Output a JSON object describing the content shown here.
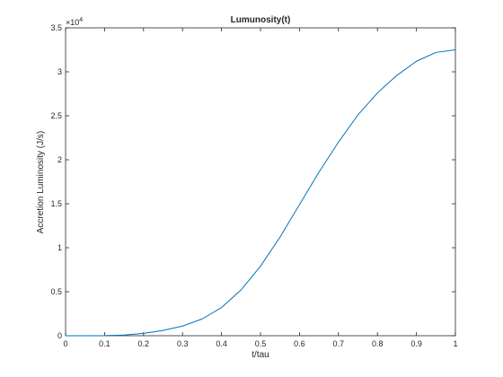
{
  "chart_data": {
    "type": "line",
    "title": "Lumunosity(t)",
    "xlabel": "t/tau",
    "ylabel": "Accretion Luminosity (J/s)",
    "xlim": [
      0,
      1
    ],
    "ylim": [
      0,
      3.5
    ],
    "y_multiplier_label": "×10",
    "y_multiplier_exponent": "4",
    "x_ticks": [
      0,
      0.1,
      0.2,
      0.3,
      0.4,
      0.5,
      0.6,
      0.7,
      0.8,
      0.9,
      1
    ],
    "x_tick_labels": [
      "0",
      "0.1",
      "0.2",
      "0.3",
      "0.4",
      "0.5",
      "0.6",
      "0.7",
      "0.8",
      "0.9",
      "1"
    ],
    "y_ticks": [
      0,
      0.5,
      1,
      1.5,
      2,
      2.5,
      3,
      3.5
    ],
    "y_tick_labels": [
      "0",
      "0.5",
      "1",
      "1.5",
      "2",
      "2.5",
      "3",
      "3.5"
    ],
    "grid": false,
    "series": [
      {
        "color": "#0072bd",
        "x": [
          0,
          0.05,
          0.1,
          0.15,
          0.2,
          0.25,
          0.3,
          0.35,
          0.4,
          0.45,
          0.5,
          0.55,
          0.6,
          0.65,
          0.7,
          0.75,
          0.8,
          0.85,
          0.9,
          0.95,
          1
        ],
        "y": [
          0,
          0,
          0.001,
          0.008,
          0.027,
          0.06,
          0.11,
          0.19,
          0.32,
          0.52,
          0.79,
          1.12,
          1.49,
          1.86,
          2.2,
          2.51,
          2.76,
          2.96,
          3.12,
          3.22,
          3.25
        ]
      }
    ]
  }
}
